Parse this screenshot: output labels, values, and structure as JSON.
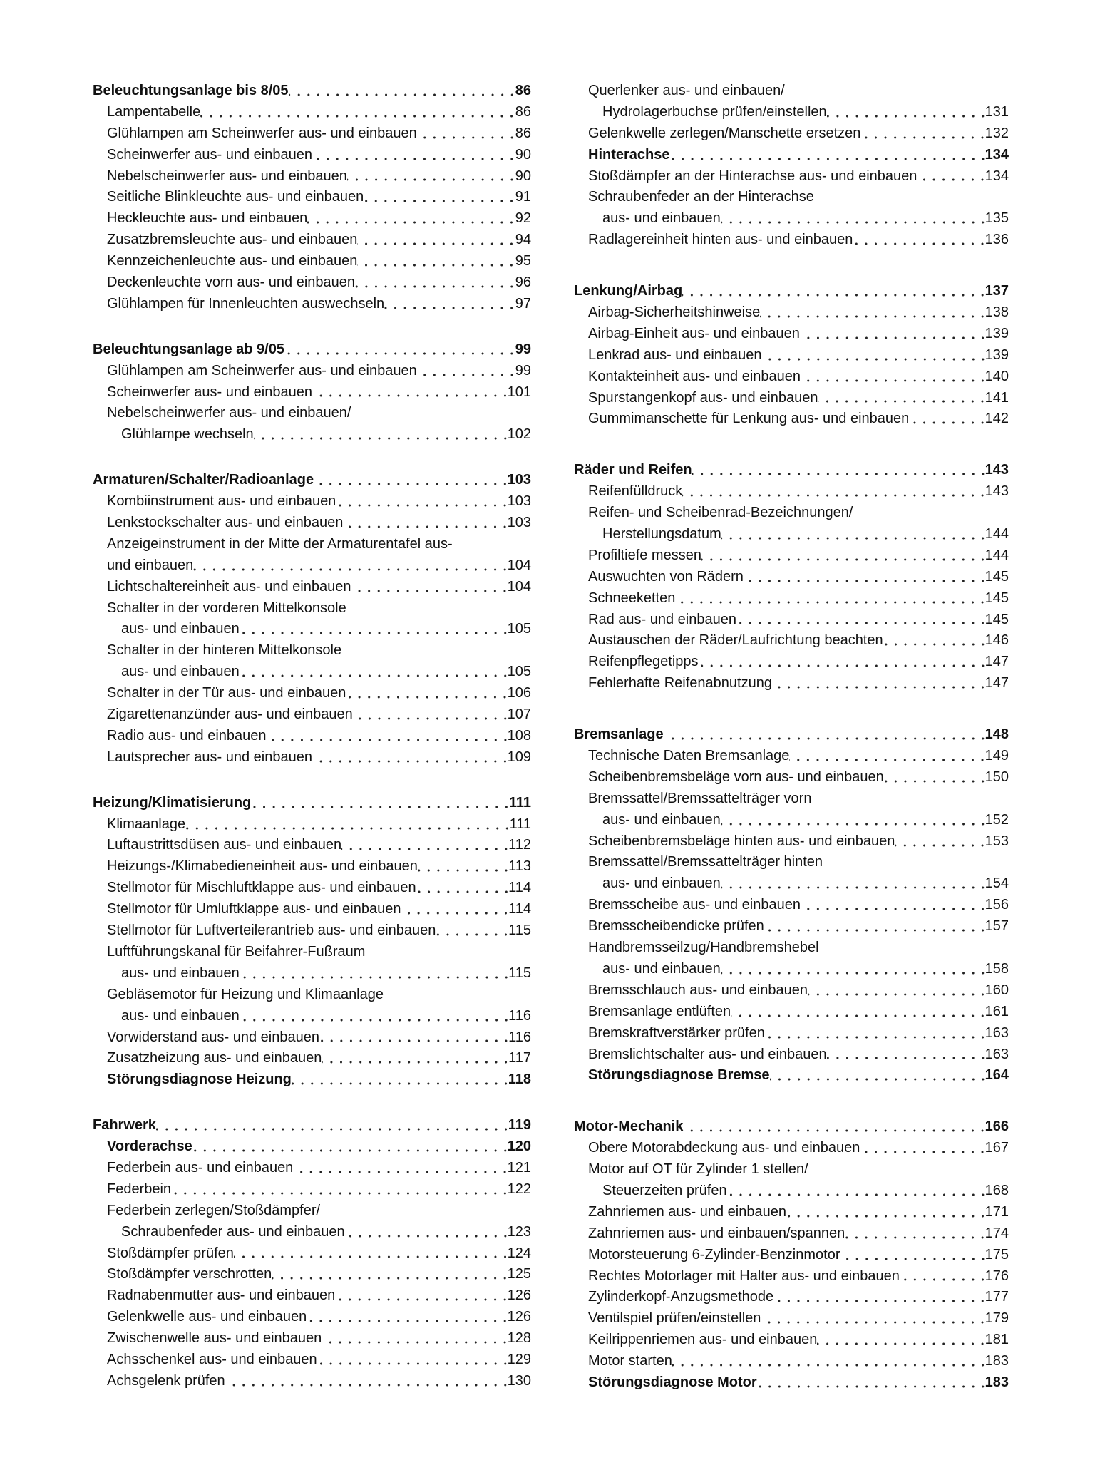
{
  "columns": [
    {
      "sections": [
        {
          "heading": {
            "text": "Beleuchtungsanlage bis 8/05",
            "page": "86"
          },
          "items": [
            {
              "lines": [
                "Lampentabelle"
              ],
              "page": "86"
            },
            {
              "lines": [
                "Glühlampen am Scheinwerfer aus- und einbauen"
              ],
              "page": "86"
            },
            {
              "lines": [
                "Scheinwerfer aus- und einbauen"
              ],
              "page": "90"
            },
            {
              "lines": [
                "Nebelscheinwerfer aus- und einbauen"
              ],
              "page": "90"
            },
            {
              "lines": [
                "Seitliche Blinkleuchte aus- und einbauen"
              ],
              "page": "91"
            },
            {
              "lines": [
                "Heckleuchte aus- und einbauen"
              ],
              "page": "92"
            },
            {
              "lines": [
                "Zusatzbremsleuchte aus- und einbauen"
              ],
              "page": "94"
            },
            {
              "lines": [
                "Kennzeichenleuchte aus- und einbauen"
              ],
              "page": "95"
            },
            {
              "lines": [
                "Deckenleuchte vorn aus- und einbauen"
              ],
              "page": "96"
            },
            {
              "lines": [
                "Glühlampen für Innenleuchten auswechseln"
              ],
              "page": "97"
            }
          ]
        },
        {
          "heading": {
            "text": "Beleuchtungsanlage ab 9/05",
            "page": "99"
          },
          "items": [
            {
              "lines": [
                "Glühlampen am Scheinwerfer aus- und einbauen"
              ],
              "page": "99"
            },
            {
              "lines": [
                "Scheinwerfer aus- und einbauen"
              ],
              "page": "101"
            },
            {
              "lines": [
                "Nebelscheinwerfer aus- und einbauen/",
                "Glühlampe wechseln"
              ],
              "page": "102"
            }
          ]
        },
        {
          "heading": {
            "text": "Armaturen/Schalter/Radioanlage",
            "page": "103"
          },
          "items": [
            {
              "lines": [
                "Kombiinstrument aus- und einbauen"
              ],
              "page": "103"
            },
            {
              "lines": [
                "Lenkstockschalter aus- und einbauen"
              ],
              "page": "103"
            },
            {
              "lines": [
                "Anzeigeinstrument in der Mitte der Armaturentafel aus-",
                "und einbauen"
              ],
              "page": "104",
              "flat": true
            },
            {
              "lines": [
                "Lichtschaltereinheit aus- und einbauen"
              ],
              "page": "104"
            },
            {
              "lines": [
                "Schalter in der vorderen Mittelkonsole",
                "aus- und einbauen"
              ],
              "page": "105"
            },
            {
              "lines": [
                "Schalter in der hinteren Mittelkonsole",
                "aus- und einbauen"
              ],
              "page": "105"
            },
            {
              "lines": [
                "Schalter in der Tür aus- und einbauen"
              ],
              "page": "106"
            },
            {
              "lines": [
                "Zigarettenanzünder aus- und einbauen"
              ],
              "page": "107"
            },
            {
              "lines": [
                "Radio aus- und einbauen"
              ],
              "page": "108"
            },
            {
              "lines": [
                "Lautsprecher aus- und einbauen"
              ],
              "page": "109"
            }
          ]
        },
        {
          "heading": {
            "text": "Heizung/Klimatisierung",
            "page": "111"
          },
          "items": [
            {
              "lines": [
                "Klimaanlage"
              ],
              "page": "111"
            },
            {
              "lines": [
                "Luftaustrittsdüsen aus- und einbauen"
              ],
              "page": "112"
            },
            {
              "lines": [
                "Heizungs-/Klimabedieneinheit aus- und einbauen"
              ],
              "page": "113"
            },
            {
              "lines": [
                "Stellmotor für Mischluftklappe aus- und einbauen"
              ],
              "page": "114"
            },
            {
              "lines": [
                "Stellmotor für Umluftklappe aus- und einbauen"
              ],
              "page": "114"
            },
            {
              "lines": [
                "Stellmotor für Luftverteilerantrieb aus- und einbauen"
              ],
              "page": "115"
            },
            {
              "lines": [
                "Luftführungskanal für Beifahrer-Fußraum",
                "aus- und einbauen"
              ],
              "page": "115"
            },
            {
              "lines": [
                "Gebläsemotor für Heizung und Klimaanlage",
                "aus- und einbauen"
              ],
              "page": "116"
            },
            {
              "lines": [
                "Vorwiderstand aus- und einbauen"
              ],
              "page": "116"
            },
            {
              "lines": [
                "Zusatzheizung aus- und einbauen"
              ],
              "page": "117"
            },
            {
              "lines": [
                "Störungsdiagnose Heizung"
              ],
              "page": "118",
              "bold": true
            }
          ]
        },
        {
          "heading": {
            "text": "Fahrwerk",
            "page": "119"
          },
          "items": [
            {
              "lines": [
                "Vorderachse"
              ],
              "page": "120",
              "bold": true
            },
            {
              "lines": [
                "Federbein aus- und einbauen"
              ],
              "page": "121"
            },
            {
              "lines": [
                "Federbein"
              ],
              "page": "122"
            },
            {
              "lines": [
                "Federbein zerlegen/Stoßdämpfer/",
                "Schraubenfeder aus- und einbauen"
              ],
              "page": "123"
            },
            {
              "lines": [
                "Stoßdämpfer prüfen"
              ],
              "page": "124"
            },
            {
              "lines": [
                "Stoßdämpfer verschrotten"
              ],
              "page": "125"
            },
            {
              "lines": [
                "Radnabenmutter aus- und einbauen"
              ],
              "page": "126"
            },
            {
              "lines": [
                "Gelenkwelle aus- und einbauen"
              ],
              "page": "126"
            },
            {
              "lines": [
                "Zwischenwelle aus- und einbauen"
              ],
              "page": "128"
            },
            {
              "lines": [
                "Achsschenkel aus- und einbauen"
              ],
              "page": "129"
            },
            {
              "lines": [
                "Achsgelenk prüfen"
              ],
              "page": "130"
            }
          ]
        }
      ]
    },
    {
      "sections": [
        {
          "heading": null,
          "items": [
            {
              "lines": [
                "Querlenker aus- und einbauen/",
                "Hydrolagerbuchse prüfen/einstellen"
              ],
              "page": "131"
            },
            {
              "lines": [
                "Gelenkwelle zerlegen/Manschette ersetzen"
              ],
              "page": "132"
            },
            {
              "lines": [
                "Hinterachse"
              ],
              "page": "134",
              "bold": true
            },
            {
              "lines": [
                "Stoßdämpfer an der Hinterachse aus- und einbauen"
              ],
              "page": "134"
            },
            {
              "lines": [
                "Schraubenfeder an der Hinterachse",
                "aus- und einbauen"
              ],
              "page": "135"
            },
            {
              "lines": [
                "Radlagereinheit hinten aus- und einbauen"
              ],
              "page": "136"
            }
          ]
        },
        {
          "heading": {
            "text": "Lenkung/Airbag",
            "page": "137"
          },
          "items": [
            {
              "lines": [
                "Airbag-Sicherheitshinweise"
              ],
              "page": "138"
            },
            {
              "lines": [
                "Airbag-Einheit aus- und einbauen"
              ],
              "page": "139"
            },
            {
              "lines": [
                "Lenkrad aus- und einbauen"
              ],
              "page": "139"
            },
            {
              "lines": [
                "Kontakteinheit aus- und einbauen"
              ],
              "page": "140"
            },
            {
              "lines": [
                "Spurstangenkopf aus- und einbauen"
              ],
              "page": "141"
            },
            {
              "lines": [
                "Gummimanschette für Lenkung aus- und einbauen"
              ],
              "page": "142"
            }
          ]
        },
        {
          "heading": {
            "text": "Räder und Reifen",
            "page": "143"
          },
          "items": [
            {
              "lines": [
                "Reifenfülldruck"
              ],
              "page": "143"
            },
            {
              "lines": [
                "Reifen- und Scheibenrad-Bezeichnungen/",
                "Herstellungsdatum"
              ],
              "page": "144"
            },
            {
              "lines": [
                "Profiltiefe messen"
              ],
              "page": "144"
            },
            {
              "lines": [
                "Auswuchten von Rädern"
              ],
              "page": "145"
            },
            {
              "lines": [
                "Schneeketten"
              ],
              "page": "145"
            },
            {
              "lines": [
                "Rad aus- und einbauen"
              ],
              "page": "145"
            },
            {
              "lines": [
                "Austauschen der Räder/Laufrichtung beachten"
              ],
              "page": "146"
            },
            {
              "lines": [
                "Reifenpflegetipps"
              ],
              "page": "147"
            },
            {
              "lines": [
                "Fehlerhafte Reifenabnutzung"
              ],
              "page": "147"
            }
          ]
        },
        {
          "heading": {
            "text": "Bremsanlage",
            "page": "148"
          },
          "items": [
            {
              "lines": [
                "Technische Daten Bremsanlage"
              ],
              "page": "149"
            },
            {
              "lines": [
                "Scheibenbremsbeläge vorn aus- und einbauen"
              ],
              "page": "150"
            },
            {
              "lines": [
                "Bremssattel/Bremssattelträger vorn",
                "aus- und einbauen"
              ],
              "page": "152"
            },
            {
              "lines": [
                "Scheibenbremsbeläge hinten aus- und einbauen"
              ],
              "page": "153"
            },
            {
              "lines": [
                "Bremssattel/Bremssattelträger hinten",
                "aus- und einbauen"
              ],
              "page": "154"
            },
            {
              "lines": [
                "Bremsscheibe aus- und einbauen"
              ],
              "page": "156"
            },
            {
              "lines": [
                "Bremsscheibendicke prüfen"
              ],
              "page": "157"
            },
            {
              "lines": [
                "Handbremsseilzug/Handbremshebel",
                "aus- und einbauen"
              ],
              "page": "158"
            },
            {
              "lines": [
                "Bremsschlauch aus- und einbauen"
              ],
              "page": "160"
            },
            {
              "lines": [
                "Bremsanlage entlüften"
              ],
              "page": "161"
            },
            {
              "lines": [
                "Bremskraftverstärker prüfen"
              ],
              "page": "163"
            },
            {
              "lines": [
                "Bremslichtschalter aus- und einbauen"
              ],
              "page": "163"
            },
            {
              "lines": [
                "Störungsdiagnose Bremse"
              ],
              "page": "164",
              "bold": true
            }
          ]
        },
        {
          "heading": {
            "text": "Motor-Mechanik",
            "page": "166"
          },
          "items": [
            {
              "lines": [
                "Obere Motorabdeckung aus- und einbauen"
              ],
              "page": "167"
            },
            {
              "lines": [
                "Motor auf OT für Zylinder 1 stellen/",
                "Steuerzeiten prüfen"
              ],
              "page": "168"
            },
            {
              "lines": [
                "Zahnriemen aus- und einbauen"
              ],
              "page": "171"
            },
            {
              "lines": [
                "Zahnriemen aus- und einbauen/spannen"
              ],
              "page": "174"
            },
            {
              "lines": [
                "Motorsteuerung 6-Zylinder-Benzinmotor"
              ],
              "page": "175"
            },
            {
              "lines": [
                "Rechtes Motorlager mit Halter aus- und einbauen"
              ],
              "page": "176"
            },
            {
              "lines": [
                "Zylinderkopf-Anzugsmethode"
              ],
              "page": "177"
            },
            {
              "lines": [
                "Ventilspiel prüfen/einstellen"
              ],
              "page": "179"
            },
            {
              "lines": [
                "Keilrippenriemen aus- und einbauen"
              ],
              "page": "181"
            },
            {
              "lines": [
                "Motor starten"
              ],
              "page": "183"
            },
            {
              "lines": [
                "Störungsdiagnose Motor"
              ],
              "page": "183",
              "bold": true
            }
          ]
        }
      ]
    }
  ]
}
